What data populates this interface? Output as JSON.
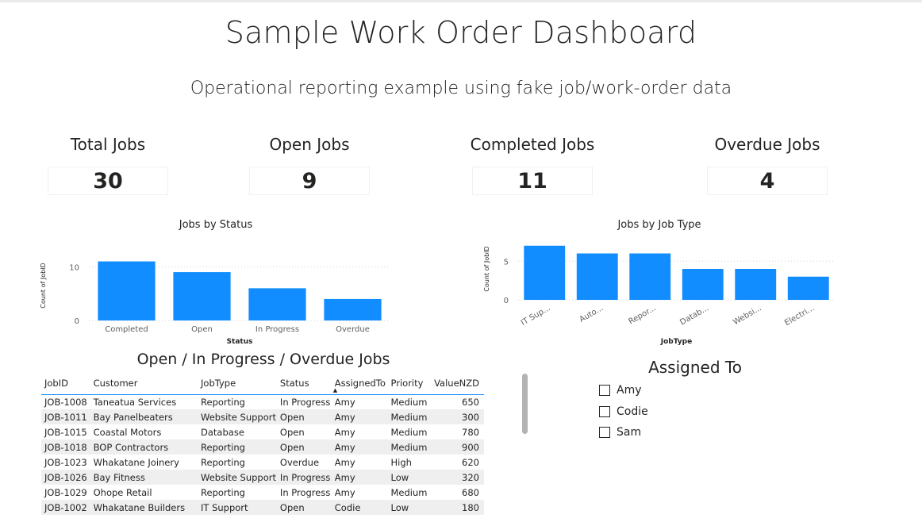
{
  "title": "Sample Work Order Dashboard",
  "subtitle": "Operational reporting example using fake job/work-order data",
  "kpis": [
    {
      "label": "Total Jobs",
      "value": "30"
    },
    {
      "label": "Open Jobs",
      "value": "9"
    },
    {
      "label": "Completed Jobs",
      "value": "11"
    },
    {
      "label": "Overdue Jobs",
      "value": "4"
    }
  ],
  "chart_data": [
    {
      "type": "bar",
      "title": "Jobs by Status",
      "xlabel": "Status",
      "ylabel": "Count of JobID",
      "categories": [
        "Completed",
        "Open",
        "In Progress",
        "Overdue"
      ],
      "values": [
        11,
        9,
        6,
        4
      ],
      "yticks": [
        0,
        10
      ],
      "ylim": [
        0,
        13
      ],
      "grid": true,
      "color": "#118dff"
    },
    {
      "type": "bar",
      "title": "Jobs by Job Type",
      "xlabel": "JobType",
      "ylabel": "Count of JobID",
      "categories": [
        "IT Sup...",
        "Auto...",
        "Repor...",
        "Datab...",
        "Websi...",
        "Electri..."
      ],
      "values": [
        7,
        6,
        6,
        4,
        4,
        3
      ],
      "yticks": [
        0,
        5
      ],
      "ylim": [
        0,
        8
      ],
      "grid": true,
      "color": "#118dff"
    }
  ],
  "table": {
    "title": "Open / In Progress / Overdue Jobs",
    "columns": [
      "JobID",
      "Customer",
      "JobType",
      "Status",
      "AssignedTo",
      "Priority",
      "ValueNZD"
    ],
    "sorted_column": "AssignedTo",
    "rows": [
      [
        "JOB-1008",
        "Taneatua Services",
        "Reporting",
        "In Progress",
        "Amy",
        "Medium",
        "650"
      ],
      [
        "JOB-1011",
        "Bay Panelbeaters",
        "Website Support",
        "Open",
        "Amy",
        "Medium",
        "300"
      ],
      [
        "JOB-1015",
        "Coastal Motors",
        "Database",
        "Open",
        "Amy",
        "Medium",
        "780"
      ],
      [
        "JOB-1018",
        "BOP Contractors",
        "Reporting",
        "Open",
        "Amy",
        "Medium",
        "900"
      ],
      [
        "JOB-1023",
        "Whakatane Joinery",
        "Reporting",
        "Overdue",
        "Amy",
        "High",
        "620"
      ],
      [
        "JOB-1026",
        "Bay Fitness",
        "Website Support",
        "In Progress",
        "Amy",
        "Low",
        "320"
      ],
      [
        "JOB-1029",
        "Ohope Retail",
        "Reporting",
        "In Progress",
        "Amy",
        "Medium",
        "680"
      ],
      [
        "JOB-1002",
        "Whakatane Builders",
        "IT Support",
        "Open",
        "Codie",
        "Low",
        "180"
      ]
    ]
  },
  "slicer": {
    "title": "Assigned To",
    "items": [
      "Amy",
      "Codie",
      "Sam"
    ]
  }
}
